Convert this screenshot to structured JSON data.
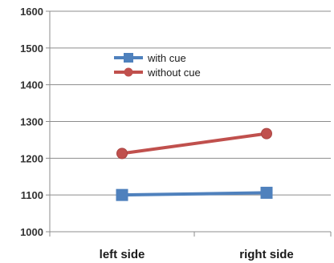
{
  "chart_data": {
    "type": "line",
    "categories": [
      "left side",
      "right side"
    ],
    "series": [
      {
        "name": "with cue",
        "values": [
          1100,
          1106
        ],
        "color": "#4f81bd",
        "marker": "square"
      },
      {
        "name": "without cue",
        "values": [
          1213,
          1267
        ],
        "color": "#c0504d",
        "marker": "circle"
      }
    ],
    "title": "",
    "xlabel": "",
    "ylabel": "",
    "ylim": [
      1000,
      1600
    ],
    "yticks": [
      1000,
      1100,
      1200,
      1300,
      1400,
      1500,
      1600
    ],
    "grid": "horizontal",
    "legend_position": "top-center"
  }
}
